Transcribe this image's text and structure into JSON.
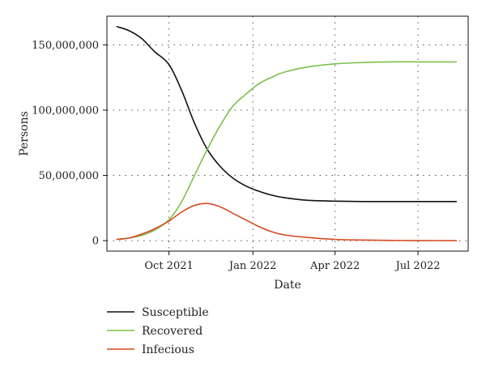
{
  "chart_data": {
    "type": "line",
    "title": "",
    "xlabel": "Date",
    "ylabel": "Persons",
    "x_axis": "date",
    "xlim": [
      "2021-07-25",
      "2022-08-25"
    ],
    "ylim": [
      -8000000,
      172000000
    ],
    "grid": true,
    "legend_position": "bottom-left",
    "x_ticks": [
      {
        "date": "2021-10-01",
        "label": "Oct 2021"
      },
      {
        "date": "2022-01-01",
        "label": "Jan 2022"
      },
      {
        "date": "2022-04-01",
        "label": "Apr 2022"
      },
      {
        "date": "2022-07-01",
        "label": "Jul 2022"
      }
    ],
    "y_ticks": [
      {
        "value": 0,
        "label": "0"
      },
      {
        "value": 50000000,
        "label": "50,000,000"
      },
      {
        "value": 100000000,
        "label": "100,000,000"
      },
      {
        "value": 150000000,
        "label": "150,000,000"
      }
    ],
    "series": [
      {
        "name": "Susceptible",
        "color": "#111111",
        "points": [
          [
            "2021-08-05",
            164000000
          ],
          [
            "2021-08-18",
            161000000
          ],
          [
            "2021-09-01",
            155000000
          ],
          [
            "2021-09-15",
            145000000
          ],
          [
            "2021-10-01",
            135000000
          ],
          [
            "2021-10-15",
            115000000
          ],
          [
            "2021-10-29",
            90000000
          ],
          [
            "2021-11-12",
            70000000
          ],
          [
            "2021-11-26",
            57000000
          ],
          [
            "2021-12-10",
            48000000
          ],
          [
            "2021-12-24",
            42000000
          ],
          [
            "2022-01-07",
            38000000
          ],
          [
            "2022-01-21",
            35000000
          ],
          [
            "2022-02-04",
            33000000
          ],
          [
            "2022-03-01",
            31000000
          ],
          [
            "2022-04-01",
            30300000
          ],
          [
            "2022-05-01",
            30000000
          ],
          [
            "2022-06-01",
            30000000
          ],
          [
            "2022-07-01",
            30000000
          ],
          [
            "2022-08-12",
            30000000
          ]
        ]
      },
      {
        "name": "Recovered",
        "color": "#7cc04a",
        "points": [
          [
            "2021-08-05",
            1000000
          ],
          [
            "2021-08-18",
            2000000
          ],
          [
            "2021-09-01",
            4000000
          ],
          [
            "2021-09-15",
            8000000
          ],
          [
            "2021-10-01",
            16000000
          ],
          [
            "2021-10-15",
            30000000
          ],
          [
            "2021-10-29",
            50000000
          ],
          [
            "2021-11-12",
            70000000
          ],
          [
            "2021-11-26",
            88000000
          ],
          [
            "2021-12-10",
            103000000
          ],
          [
            "2021-12-24",
            112000000
          ],
          [
            "2022-01-07",
            120000000
          ],
          [
            "2022-01-21",
            125000000
          ],
          [
            "2022-02-04",
            129000000
          ],
          [
            "2022-03-01",
            133000000
          ],
          [
            "2022-04-01",
            135500000
          ],
          [
            "2022-05-01",
            136500000
          ],
          [
            "2022-06-01",
            137000000
          ],
          [
            "2022-07-01",
            137000000
          ],
          [
            "2022-08-12",
            137000000
          ]
        ]
      },
      {
        "name": "Infecious",
        "color": "#d64a22",
        "points": [
          [
            "2021-08-05",
            1000000
          ],
          [
            "2021-08-18",
            2000000
          ],
          [
            "2021-09-01",
            5000000
          ],
          [
            "2021-09-15",
            9000000
          ],
          [
            "2021-10-01",
            15000000
          ],
          [
            "2021-10-15",
            22000000
          ],
          [
            "2021-10-29",
            27000000
          ],
          [
            "2021-11-12",
            28500000
          ],
          [
            "2021-11-26",
            26000000
          ],
          [
            "2021-12-10",
            21000000
          ],
          [
            "2021-12-24",
            16000000
          ],
          [
            "2022-01-07",
            11000000
          ],
          [
            "2022-01-21",
            7000000
          ],
          [
            "2022-02-04",
            4500000
          ],
          [
            "2022-03-01",
            2500000
          ],
          [
            "2022-04-01",
            1000000
          ],
          [
            "2022-05-01",
            500000
          ],
          [
            "2022-06-01",
            200000
          ],
          [
            "2022-07-01",
            100000
          ],
          [
            "2022-08-12",
            50000
          ]
        ]
      }
    ]
  }
}
